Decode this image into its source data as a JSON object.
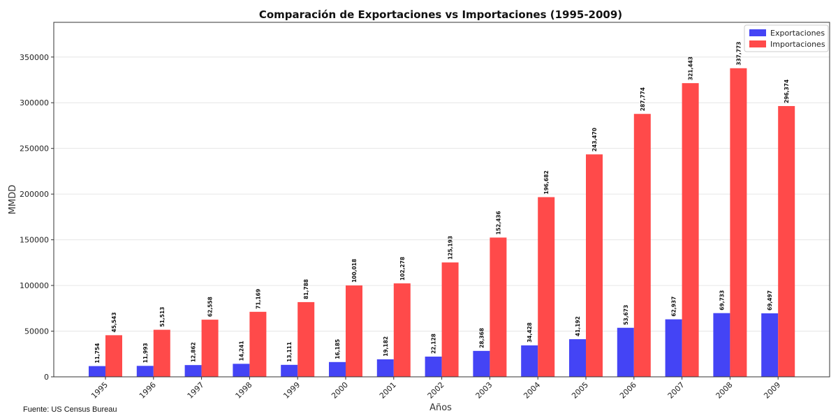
{
  "chart_data": {
    "type": "bar",
    "title": "Comparación de Exportaciones vs Importaciones (1995-2009)",
    "xlabel": "Años",
    "ylabel": "MMDD",
    "source": "Fuente: US Census Bureau",
    "categories": [
      "1995",
      "1996",
      "1997",
      "1998",
      "1999",
      "2000",
      "2001",
      "2002",
      "2003",
      "2004",
      "2005",
      "2006",
      "2007",
      "2008",
      "2009"
    ],
    "series": [
      {
        "name": "Exportaciones",
        "color": "#4444f5",
        "values": [
          11754,
          11993,
          12862,
          14241,
          13111,
          16185,
          19182,
          22128,
          28368,
          34428,
          41192,
          53673,
          62937,
          69733,
          69497
        ],
        "labels": [
          "11,754",
          "11,993",
          "12,862",
          "14,241",
          "13,111",
          "16,185",
          "19,182",
          "22,128",
          "28,368",
          "34,428",
          "41,192",
          "53,673",
          "62,937",
          "69,733",
          "69,497"
        ]
      },
      {
        "name": "Importaciones",
        "color": "#ff4a4a",
        "values": [
          45543,
          51513,
          62558,
          71169,
          81788,
          100018,
          102278,
          125193,
          152436,
          196682,
          243470,
          287774,
          321443,
          337773,
          296374
        ],
        "labels": [
          "45,543",
          "51,513",
          "62,558",
          "71,169",
          "81,788",
          "100,018",
          "102,278",
          "125,193",
          "152,436",
          "196,682",
          "243,470",
          "287,774",
          "321,443",
          "337,773",
          "296,374"
        ]
      }
    ],
    "yticks": [
      0,
      50000,
      100000,
      150000,
      200000,
      250000,
      300000,
      350000
    ],
    "ylim": [
      0,
      388000
    ],
    "grid": true,
    "legend_position": "top-right"
  }
}
